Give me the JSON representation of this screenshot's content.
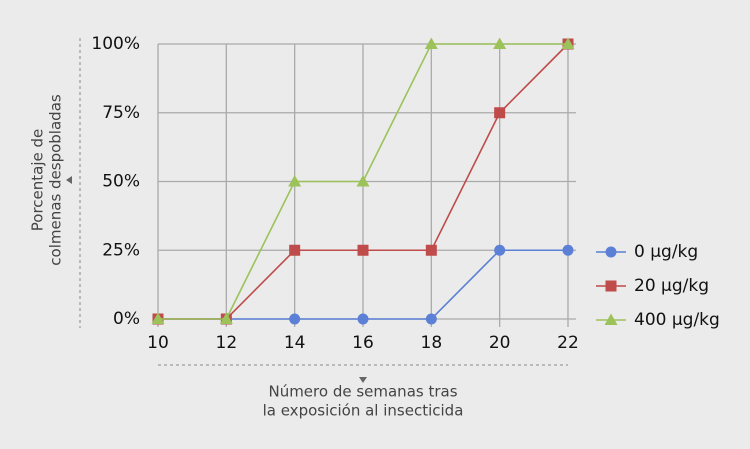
{
  "chart_data": {
    "type": "line",
    "x": [
      10,
      12,
      14,
      16,
      18,
      20,
      22
    ],
    "xlim": [
      10,
      22
    ],
    "xticks": [
      10,
      12,
      14,
      16,
      18,
      20,
      22
    ],
    "ylim": [
      0,
      100
    ],
    "yticks": [
      {
        "value": 0,
        "label": "0%"
      },
      {
        "value": 25,
        "label": "25%"
      },
      {
        "value": 50,
        "label": "50%"
      },
      {
        "value": 75,
        "label": "75%"
      },
      {
        "value": 100,
        "label": "100%"
      }
    ],
    "grid": true,
    "ylabel": [
      "Porcentaje de",
      "colmenas despobladas"
    ],
    "xlabel": [
      "Número de semanas tras",
      "la exposición al insecticida"
    ],
    "legend": "right",
    "series": [
      {
        "name": "0 µg/kg",
        "color": "#5b80d5",
        "marker": "circle",
        "values": [
          0,
          0,
          0,
          0,
          0,
          25,
          25
        ]
      },
      {
        "name": "20 µg/kg",
        "color": "#bf4b4b",
        "marker": "square",
        "values": [
          0,
          0,
          25,
          25,
          25,
          75,
          100
        ]
      },
      {
        "name": "400 µg/kg",
        "color": "#9cc25a",
        "marker": "triangle",
        "values": [
          0,
          0,
          50,
          50,
          100,
          100,
          100
        ]
      }
    ]
  }
}
